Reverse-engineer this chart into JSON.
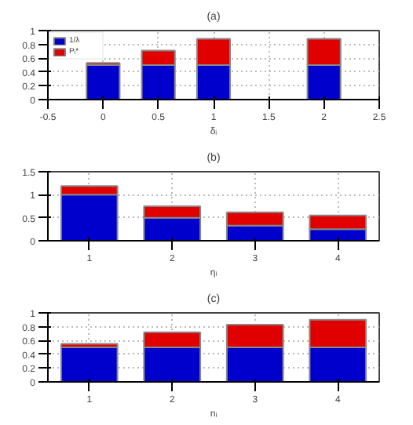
{
  "chart_data": [
    {
      "type": "bar",
      "title": "(a)",
      "xlabel": "δᵢ",
      "x": [
        0,
        0.5,
        1,
        2
      ],
      "stacked": true,
      "xlim": [
        -0.5,
        2.5
      ],
      "xticks": [
        -0.5,
        0,
        0.5,
        1,
        1.5,
        2,
        2.5
      ],
      "ylim": [
        0,
        1
      ],
      "yticks": [
        0,
        0.2,
        0.4,
        0.6,
        0.8,
        1
      ],
      "grid": true,
      "legend": "top left",
      "series": [
        {
          "name": "1/λ",
          "color": "#0000cc",
          "values": [
            0.5,
            0.5,
            0.5,
            0.5
          ]
        },
        {
          "name": "Pᵢ*",
          "color": "#e00000",
          "values": [
            0.03,
            0.21,
            0.38,
            0.38
          ]
        }
      ]
    },
    {
      "type": "bar",
      "title": "(b)",
      "xlabel": "ηᵢ",
      "x": [
        1,
        2,
        3,
        4
      ],
      "stacked": true,
      "xlim": [
        0.5,
        4.5
      ],
      "xticks": [
        1,
        2,
        3,
        4
      ],
      "ylim": [
        0,
        1.5
      ],
      "yticks": [
        0,
        0.5,
        1,
        1.5
      ],
      "grid": true,
      "series": [
        {
          "color": "#0000cc",
          "values": [
            1,
            0.5,
            0.33,
            0.25
          ]
        },
        {
          "color": "#e00000",
          "values": [
            0.19,
            0.25,
            0.29,
            0.3
          ]
        }
      ]
    },
    {
      "type": "bar",
      "title": "(c)",
      "xlabel": "nᵢ",
      "x": [
        1,
        2,
        3,
        4
      ],
      "stacked": true,
      "xlim": [
        0.5,
        4.5
      ],
      "xticks": [
        1,
        2,
        3,
        4
      ],
      "ylim": [
        0,
        1
      ],
      "yticks": [
        0,
        0.2,
        0.4,
        0.6,
        0.8,
        1
      ],
      "grid": true,
      "series": [
        {
          "color": "#0000cc",
          "values": [
            0.5,
            0.5,
            0.5,
            0.5
          ]
        },
        {
          "color": "#e00000",
          "values": [
            0.05,
            0.22,
            0.33,
            0.4
          ]
        }
      ]
    }
  ]
}
